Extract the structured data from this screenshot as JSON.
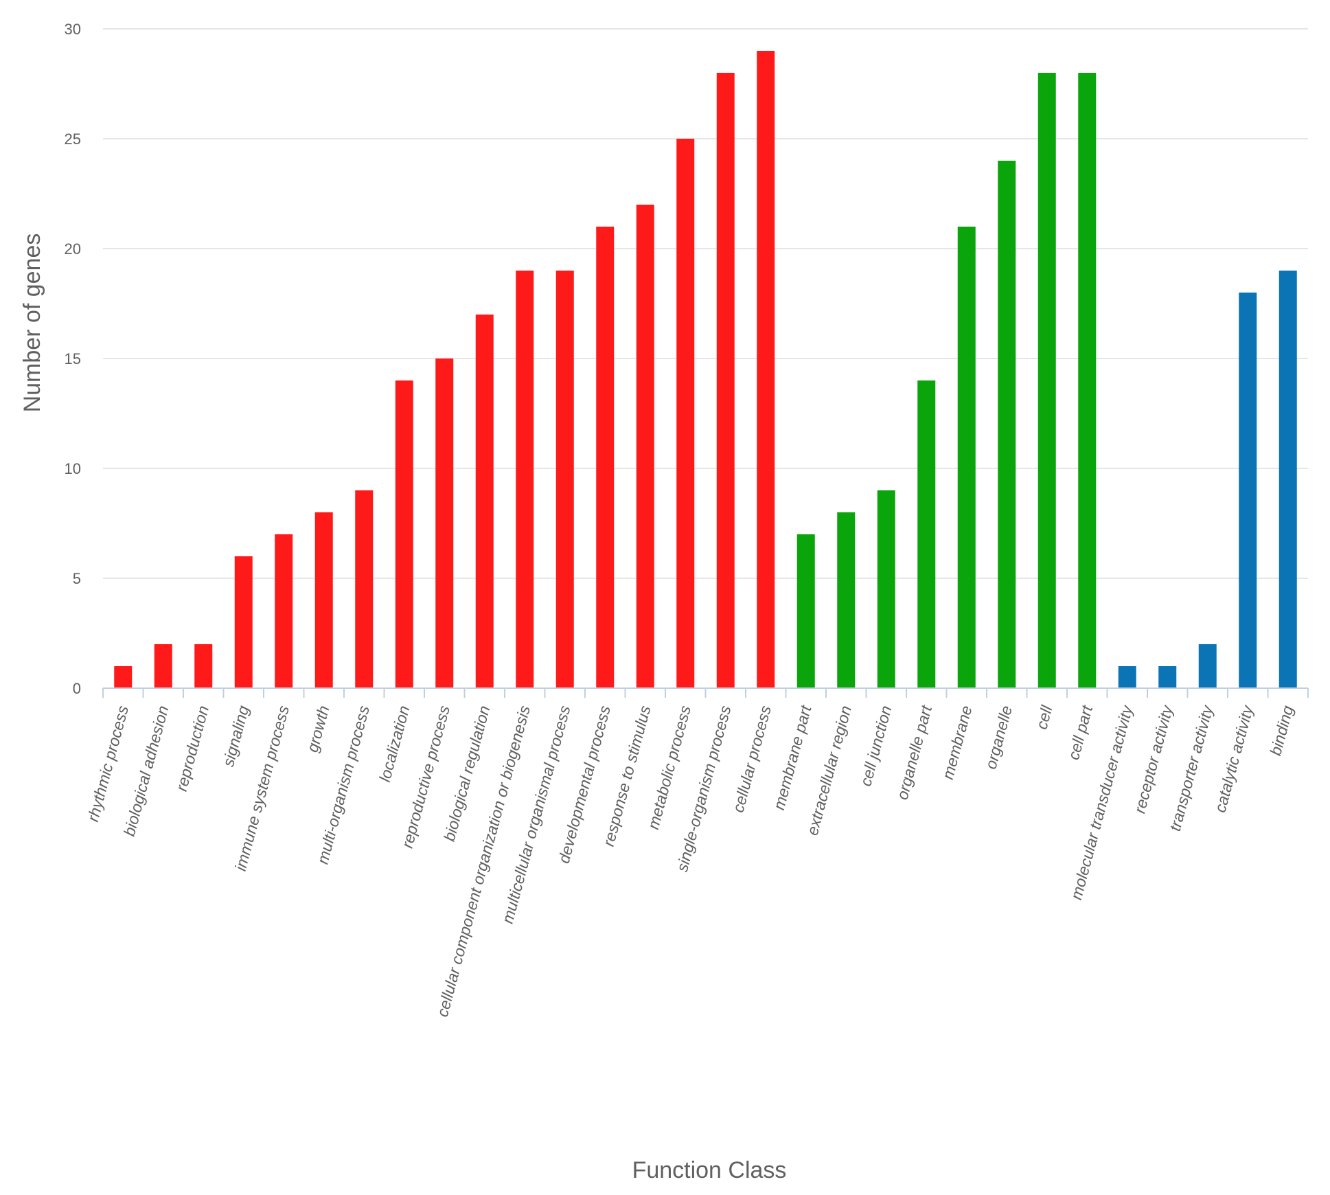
{
  "chart_data": {
    "type": "bar",
    "xlabel": "Function Class",
    "ylabel": "Number of genes",
    "ylim": [
      0,
      30
    ],
    "yticks": [
      0,
      5,
      10,
      15,
      20,
      25,
      30
    ],
    "grid": true,
    "legend": "none",
    "colors": {
      "process": "#ff1a1a",
      "component": "#0aa50a",
      "function": "#0a74b4"
    },
    "categories": [
      "rhythmic process",
      "biological adhesion",
      "reproduction",
      "signaling",
      "immune system process",
      "growth",
      "multi-organism process",
      "localization",
      "reproductive process",
      "biological regulation",
      "cellular component organization or biogenesis",
      "multicellular organismal process",
      "developmental process",
      "response to stimulus",
      "metabolic process",
      "single-organism process",
      "cellular process",
      "membrane part",
      "extracellular region",
      "cell junction",
      "organelle part",
      "membrane",
      "organelle",
      "cell",
      "cell part",
      "molecular transducer activity",
      "receptor activity",
      "transporter activity",
      "catalytic activity",
      "binding"
    ],
    "values": [
      1,
      2,
      2,
      6,
      7,
      8,
      9,
      14,
      15,
      17,
      19,
      19,
      21,
      22,
      25,
      28,
      29,
      7,
      8,
      9,
      14,
      21,
      24,
      28,
      28,
      1,
      1,
      2,
      18,
      19
    ],
    "groups": [
      "process",
      "process",
      "process",
      "process",
      "process",
      "process",
      "process",
      "process",
      "process",
      "process",
      "process",
      "process",
      "process",
      "process",
      "process",
      "process",
      "process",
      "component",
      "component",
      "component",
      "component",
      "component",
      "component",
      "component",
      "component",
      "function",
      "function",
      "function",
      "function",
      "function"
    ]
  }
}
